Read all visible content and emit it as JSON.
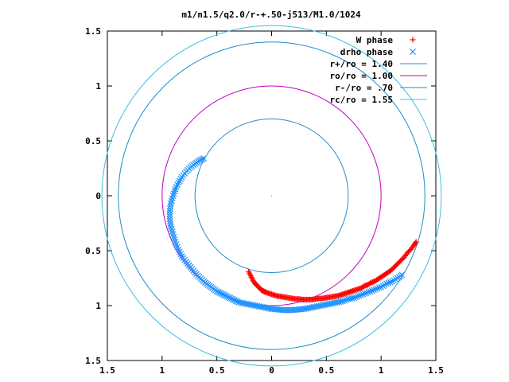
{
  "chart_data": {
    "type": "scatter",
    "title": "m1/n1.5/q2.0/r-+.50-j513/M1.0/1024",
    "xlabel": "",
    "ylabel": "",
    "xlim": [
      -1.5,
      1.5
    ],
    "ylim": [
      -1.5,
      1.5
    ],
    "xticks": [
      -1.5,
      -1,
      -0.5,
      0,
      0.5,
      1,
      1.5
    ],
    "yticks": [
      -1.5,
      -1,
      -0.5,
      0,
      0.5,
      1,
      1.5
    ],
    "xtick_labels": [
      "1.5",
      "1",
      "0.5",
      "0",
      "0.5",
      "1",
      "1.5"
    ],
    "ytick_labels": [
      "1.5",
      "1",
      "0.5",
      "0",
      "0.5",
      "1",
      "1.5"
    ],
    "grid": false,
    "legend_position": "top-right",
    "colors": {
      "w_phase": "#ff0000",
      "drho_phase": "#1e90ff",
      "r_plus": "#1f8ccc",
      "r_o": "#c000c0",
      "r_minus": "#1f8ccc",
      "r_c": "#3fbfe0"
    },
    "series": [
      {
        "name": "W phase",
        "marker": "+",
        "color_key": "w_phase",
        "x": [
          -0.21,
          -0.19,
          -0.17,
          -0.15,
          -0.13,
          -0.11,
          -0.09,
          -0.07,
          -0.05,
          -0.02,
          0.01,
          0.04,
          0.07,
          0.1,
          0.13,
          0.16,
          0.19,
          0.22,
          0.25,
          0.28,
          0.31,
          0.34,
          0.37,
          0.4,
          0.43,
          0.46,
          0.49,
          0.52,
          0.55,
          0.58,
          0.61,
          0.64,
          0.67,
          0.7,
          0.73,
          0.76,
          0.79,
          0.82,
          0.85,
          0.88,
          0.91,
          0.94,
          0.97,
          1.0,
          1.03,
          1.06,
          1.09,
          1.12,
          1.15,
          1.18,
          1.21,
          1.24,
          1.27,
          1.3,
          1.32
        ],
        "y": [
          -0.69,
          -0.73,
          -0.77,
          -0.8,
          -0.82,
          -0.84,
          -0.86,
          -0.87,
          -0.88,
          -0.89,
          -0.9,
          -0.91,
          -0.915,
          -0.92,
          -0.925,
          -0.93,
          -0.935,
          -0.94,
          -0.94,
          -0.945,
          -0.945,
          -0.945,
          -0.945,
          -0.94,
          -0.935,
          -0.935,
          -0.93,
          -0.925,
          -0.92,
          -0.915,
          -0.91,
          -0.9,
          -0.89,
          -0.88,
          -0.87,
          -0.86,
          -0.85,
          -0.84,
          -0.82,
          -0.81,
          -0.79,
          -0.78,
          -0.76,
          -0.74,
          -0.72,
          -0.7,
          -0.68,
          -0.65,
          -0.62,
          -0.59,
          -0.56,
          -0.52,
          -0.49,
          -0.45,
          -0.42
        ]
      },
      {
        "name": "drho phase",
        "marker": "x",
        "color_key": "drho_phase",
        "x": [
          -0.62,
          -0.66,
          -0.7,
          -0.74,
          -0.78,
          -0.82,
          -0.85,
          -0.88,
          -0.9,
          -0.92,
          -0.93,
          -0.93,
          -0.92,
          -0.9,
          -0.88,
          -0.85,
          -0.82,
          -0.78,
          -0.74,
          -0.7,
          -0.66,
          -0.62,
          -0.58,
          -0.54,
          -0.5,
          -0.46,
          -0.42,
          -0.38,
          -0.34,
          -0.3,
          -0.25,
          -0.2,
          -0.15,
          -0.1,
          -0.05,
          0.0,
          0.05,
          0.1,
          0.15,
          0.2,
          0.25,
          0.3,
          0.35,
          0.4,
          0.45,
          0.5,
          0.55,
          0.6,
          0.65,
          0.7,
          0.75,
          0.8,
          0.85,
          0.9,
          0.95,
          1.0,
          1.05,
          1.1,
          1.15,
          1.19
        ],
        "y": [
          0.34,
          0.32,
          0.29,
          0.26,
          0.22,
          0.17,
          0.12,
          0.06,
          0.0,
          -0.07,
          -0.14,
          -0.21,
          -0.28,
          -0.35,
          -0.42,
          -0.49,
          -0.55,
          -0.6,
          -0.65,
          -0.7,
          -0.74,
          -0.78,
          -0.81,
          -0.84,
          -0.87,
          -0.89,
          -0.91,
          -0.93,
          -0.95,
          -0.97,
          -0.98,
          -0.99,
          -1.0,
          -1.01,
          -1.02,
          -1.03,
          -1.035,
          -1.04,
          -1.04,
          -1.04,
          -1.035,
          -1.03,
          -1.02,
          -1.01,
          -1.0,
          -0.99,
          -0.98,
          -0.97,
          -0.96,
          -0.94,
          -0.93,
          -0.91,
          -0.89,
          -0.87,
          -0.85,
          -0.83,
          -0.8,
          -0.78,
          -0.75,
          -0.72
        ]
      },
      {
        "name": "r+/ro = 1.40",
        "shape": "circle",
        "radius": 1.4,
        "color_key": "r_plus"
      },
      {
        "name": "ro/ro = 1.00",
        "shape": "circle",
        "radius": 1.0,
        "color_key": "r_o"
      },
      {
        "name": "r-/ro = .70",
        "shape": "circle",
        "radius": 0.7,
        "color_key": "r_minus"
      },
      {
        "name": "rc/ro = 1.55",
        "shape": "circle",
        "radius": 1.55,
        "color_key": "r_c"
      }
    ]
  }
}
